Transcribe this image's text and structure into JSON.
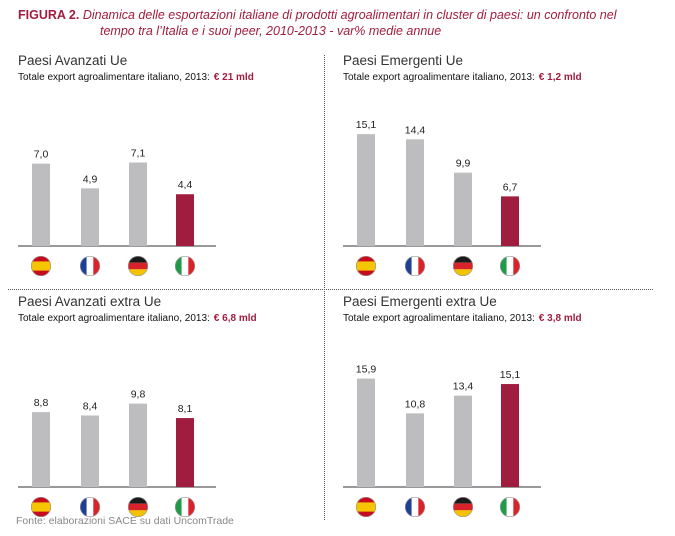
{
  "figure": {
    "label": "FIGURA 2.",
    "line1": "Dinamica delle esportazioni italiane di prodotti agroalimentari in cluster di paesi: un confronto nel",
    "line2": "tempo tra l’Italia e i suoi peer, 2010-2013 - var% medie annue"
  },
  "source": "Fonte: elaborazioni SACE su dati UncomTrade",
  "colors": {
    "grey": "#bdbdbf",
    "italy": "#a11d3f",
    "accent": "#a11d3f"
  },
  "chart_data": [
    {
      "type": "bar",
      "title": "Paesi Avanzati Ue",
      "subtitle": "Totale export agroalimentare italiano, 2013:",
      "subtitle_value": "€ 21 mld",
      "categories": [
        "spain-flag",
        "france-flag",
        "germany-flag",
        "italy-flag"
      ],
      "values": [
        7.0,
        4.9,
        7.1,
        4.4
      ],
      "labels": [
        "7,0",
        "4,9",
        "7,1",
        "4,4"
      ],
      "ylim": [
        0,
        10.2
      ]
    },
    {
      "type": "bar",
      "title": "Paesi Emergenti Ue",
      "subtitle": "Totale export agroalimentare italiano, 2013:",
      "subtitle_value": "€ 1,2 mld",
      "categories": [
        "spain-flag",
        "france-flag",
        "germany-flag",
        "italy-flag"
      ],
      "values": [
        15.1,
        14.4,
        9.9,
        6.7
      ],
      "labels": [
        "15,1",
        "14,4",
        "9,9",
        "6,7"
      ],
      "ylim": [
        0,
        16.2
      ]
    },
    {
      "type": "bar",
      "title": "Paesi Avanzati extra Ue",
      "subtitle": "Totale export agroalimentare italiano, 2013:",
      "subtitle_value": "€ 6,8 mld",
      "categories": [
        "spain-flag",
        "france-flag",
        "germany-flag",
        "italy-flag"
      ],
      "values": [
        8.8,
        8.4,
        9.8,
        8.1
      ],
      "labels": [
        "8,8",
        "8,4",
        "9,8",
        "8,1"
      ],
      "ylim": [
        0,
        14.1
      ]
    },
    {
      "type": "bar",
      "title": "Paesi Emergenti extra Ue",
      "subtitle": "Totale export agroalimentare italiano, 2013:",
      "subtitle_value": "€ 3,8 mld",
      "categories": [
        "spain-flag",
        "france-flag",
        "germany-flag",
        "italy-flag"
      ],
      "values": [
        15.9,
        10.8,
        13.4,
        15.1
      ],
      "labels": [
        "15,9",
        "10,8",
        "13,4",
        "15,1"
      ],
      "ylim": [
        0,
        17.6
      ]
    }
  ]
}
